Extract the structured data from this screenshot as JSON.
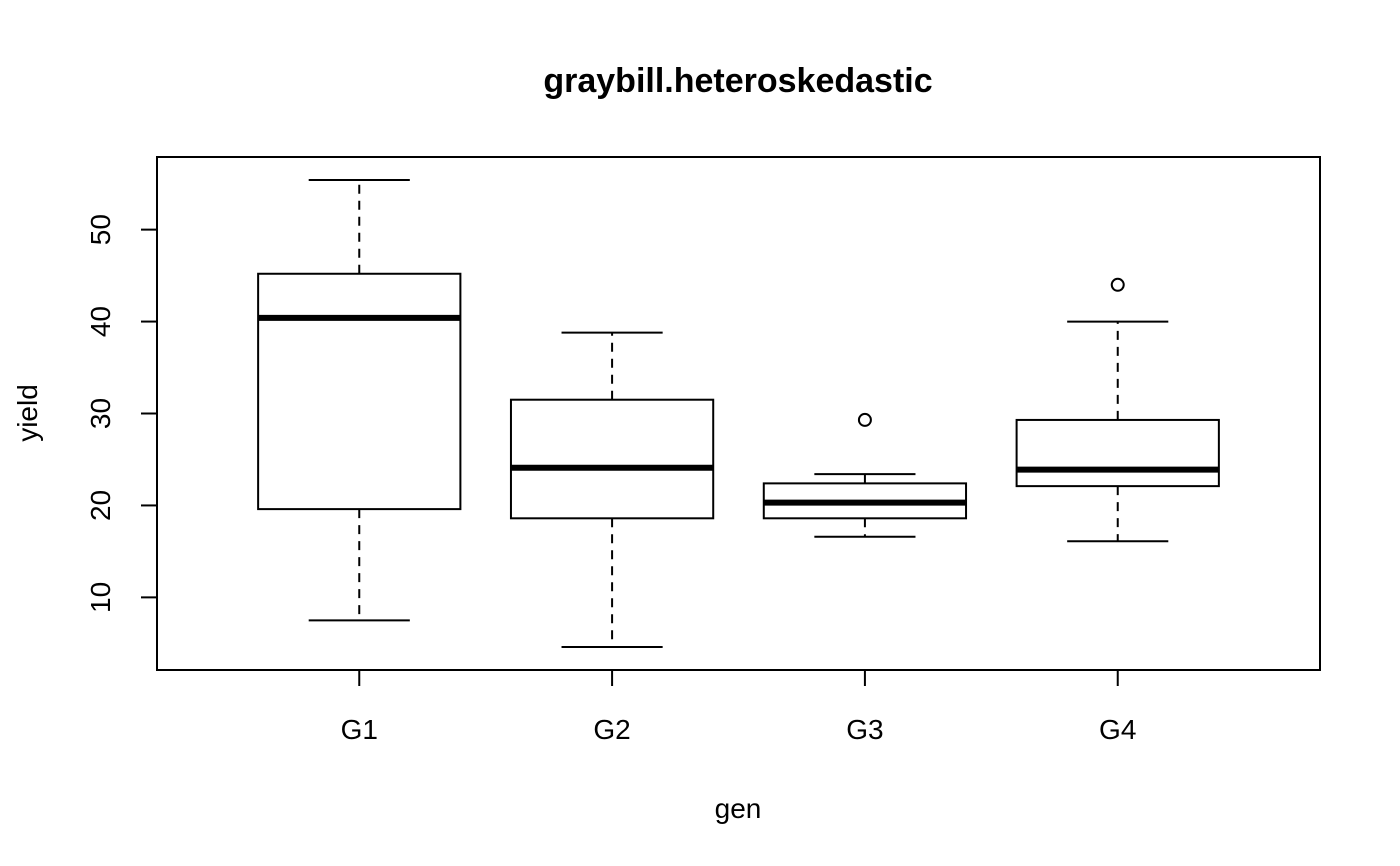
{
  "chart_data": {
    "type": "boxplot",
    "title": "graybill.heteroskedastic",
    "xlabel": "gen",
    "ylabel": "yield",
    "categories": [
      "G1",
      "G2",
      "G3",
      "G4"
    ],
    "ylim": [
      2.1,
      57.9
    ],
    "yticks": [
      10,
      20,
      30,
      40,
      50
    ],
    "grid": false,
    "boxes": [
      {
        "name": "G1",
        "whisker_low": 7.5,
        "q1": 19.6,
        "median": 40.4,
        "q3": 45.2,
        "whisker_high": 55.4,
        "outliers": []
      },
      {
        "name": "G2",
        "whisker_low": 4.6,
        "q1": 18.6,
        "median": 24.1,
        "q3": 31.5,
        "whisker_high": 38.8,
        "outliers": []
      },
      {
        "name": "G3",
        "whisker_low": 16.6,
        "q1": 18.6,
        "median": 20.3,
        "q3": 22.4,
        "whisker_high": 23.4,
        "outliers": [
          29.3
        ]
      },
      {
        "name": "G4",
        "whisker_low": 16.1,
        "q1": 22.1,
        "median": 23.9,
        "q3": 29.3,
        "whisker_high": 40.0,
        "outliers": [
          44.0
        ]
      }
    ]
  }
}
